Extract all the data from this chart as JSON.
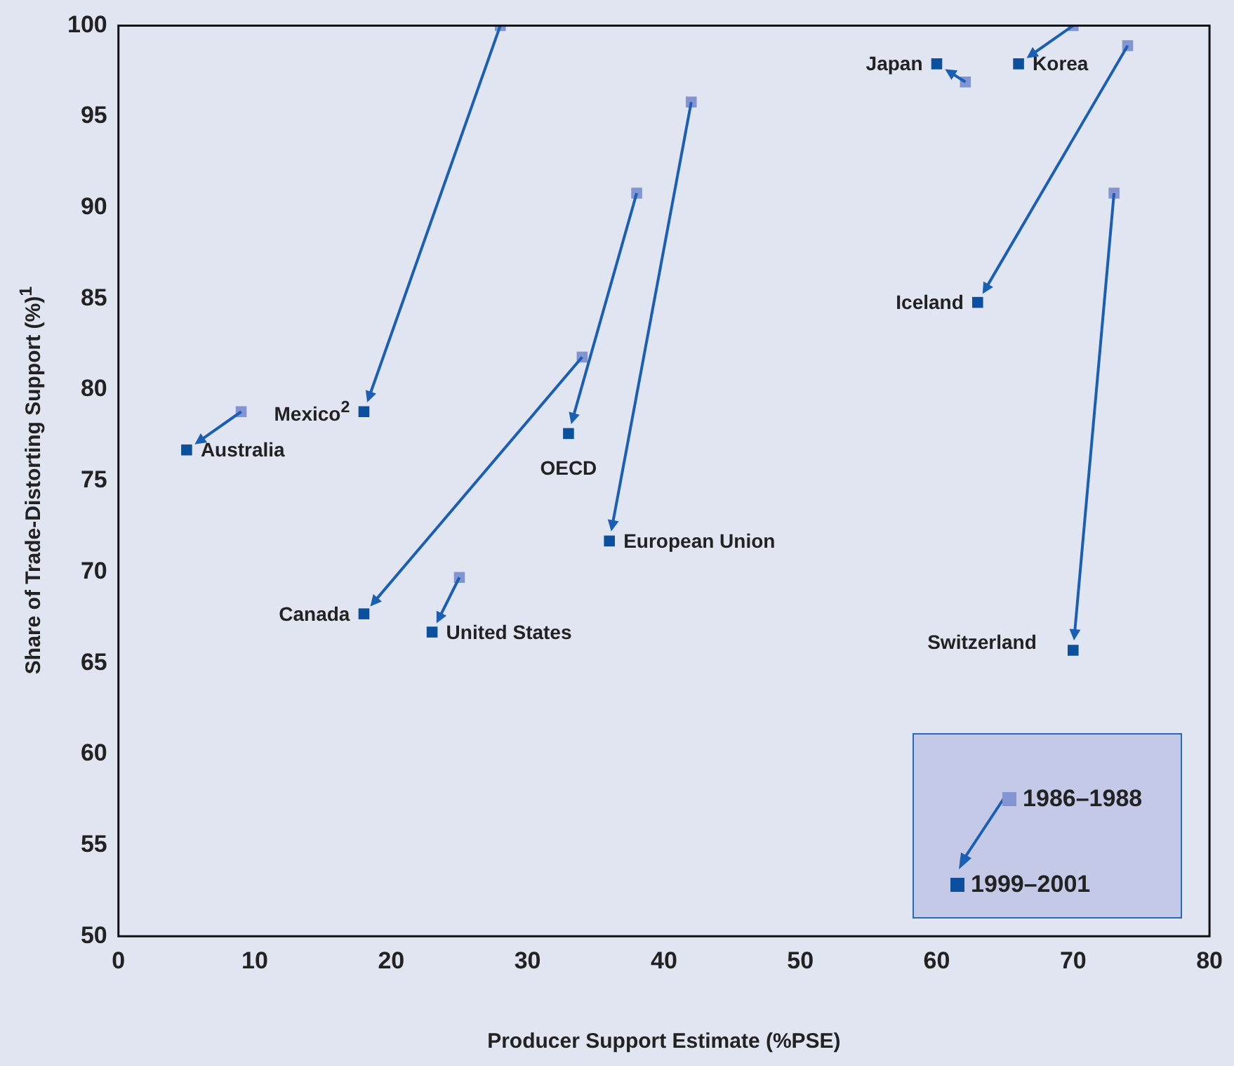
{
  "chart_data": {
    "type": "scatter",
    "xlabel": "Producer Support Estimate (%PSE)",
    "ylabel": "Share of Trade-Distorting Support (%)$^{1}$",
    "xlim": [
      0,
      80
    ],
    "xticks": [
      0,
      10,
      20,
      30,
      40,
      50,
      60,
      70,
      80
    ],
    "ylim": [
      50,
      100
    ],
    "yticks": [
      50,
      55,
      60,
      65,
      70,
      75,
      80,
      85,
      90,
      95,
      100
    ],
    "grid": false,
    "legend": "bottom right",
    "marker": "square",
    "series": [
      {
        "name": "1986–1988",
        "color": "#8294d2",
        "x": [
          28,
          9,
          34,
          25,
          38,
          42,
          62.1,
          70,
          74,
          73
        ],
        "values": [
          100,
          78.8,
          81.8,
          69.7,
          90.8,
          95.8,
          96.9,
          100,
          98.9,
          90.8
        ]
      },
      {
        "name": "1999–2001",
        "color": "#0b4f9f",
        "x": [
          18,
          5,
          18,
          23,
          33,
          36,
          60,
          66,
          63,
          70
        ],
        "values": [
          78.8,
          76.7,
          67.7,
          66.7,
          77.6,
          71.7,
          97.9,
          97.9,
          84.8,
          65.7
        ]
      }
    ],
    "annotations": [
      {
        "text": "Mexico$^{2}$",
        "x": 18,
        "y": 78.8
      },
      {
        "text": "Australia",
        "x": 5,
        "y": 76.7
      },
      {
        "text": "Canada",
        "x": 18,
        "y": 67.7
      },
      {
        "text": "United States",
        "x": 23,
        "y": 66.7
      },
      {
        "text": "OECD",
        "x": 33,
        "y": 77.6
      },
      {
        "text": "European Union",
        "x": 36,
        "y": 71.7
      },
      {
        "text": "Japan",
        "x": 60,
        "y": 97.9
      },
      {
        "text": "Korea",
        "x": 66,
        "y": 97.9
      },
      {
        "text": "Iceland",
        "x": 63,
        "y": 84.8
      },
      {
        "text": "Switzerland",
        "x": 70,
        "y": 65.7
      }
    ]
  }
}
